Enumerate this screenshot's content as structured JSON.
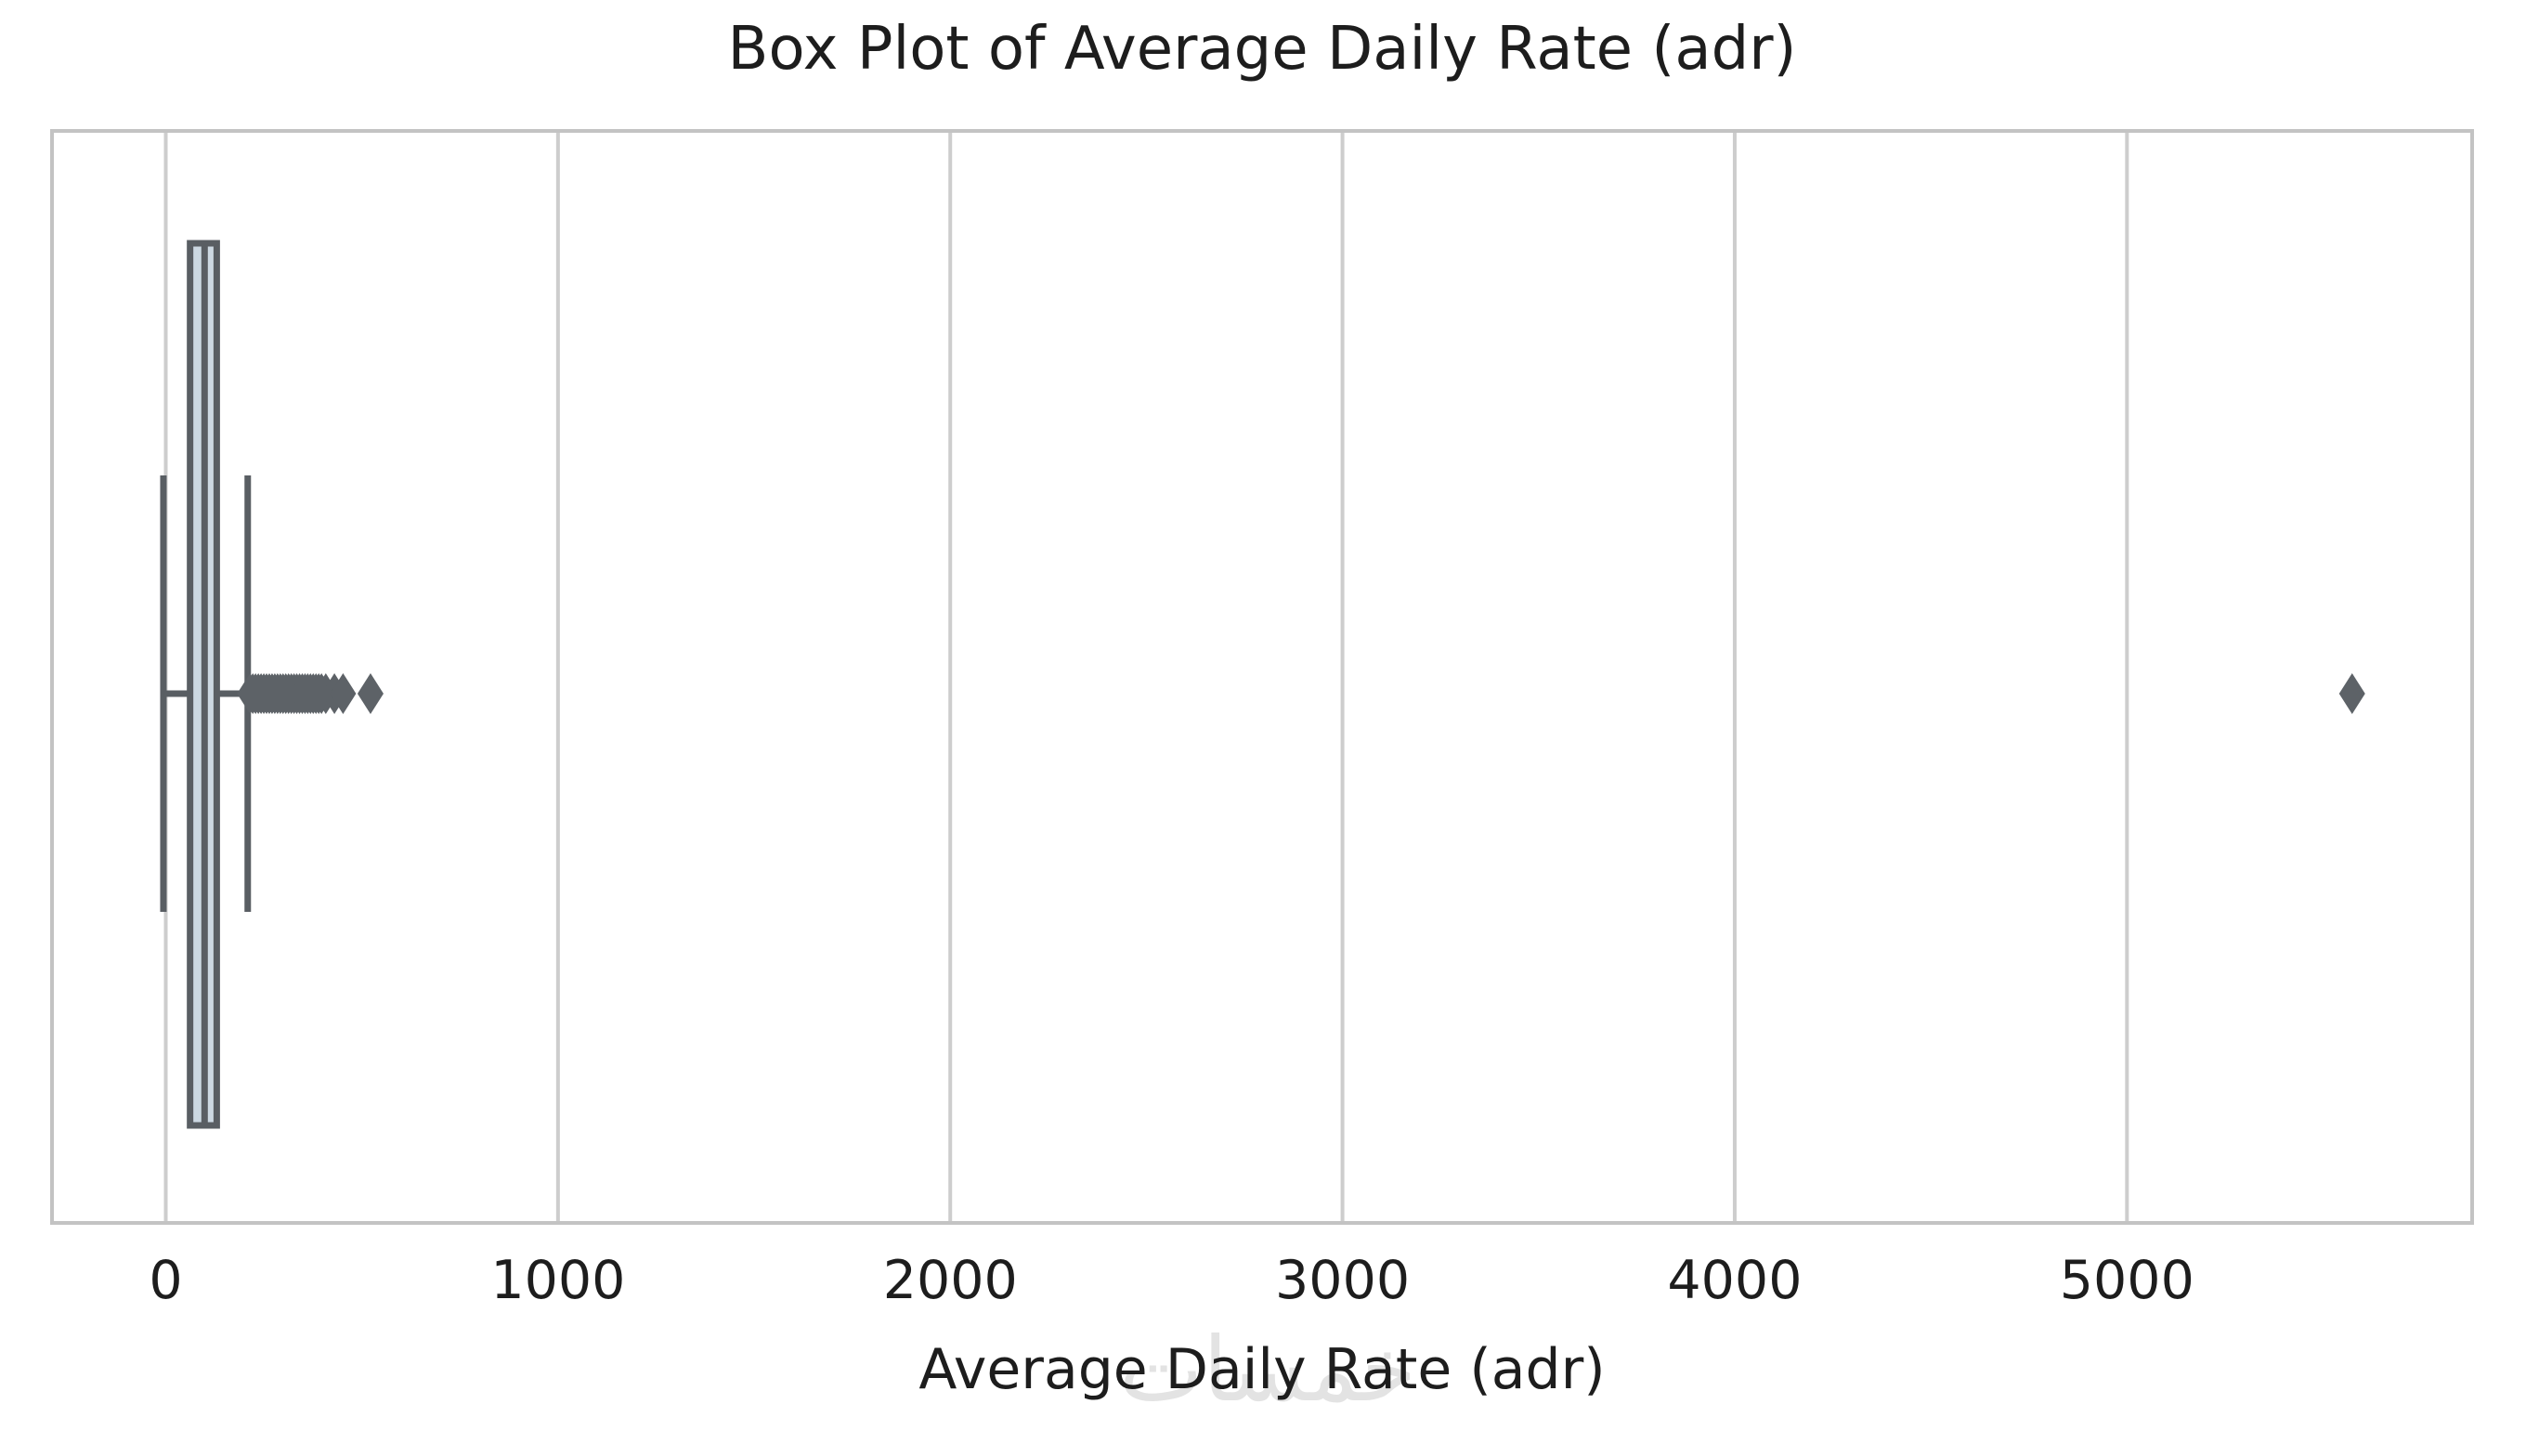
{
  "figure": {
    "title": "Box Plot of Average Daily Rate (adr)",
    "xlabel": "Average Daily Rate (adr)",
    "watermark": "خمسات"
  },
  "chart_data": {
    "type": "box",
    "orientation": "horizontal",
    "title": "Box Plot of Average Daily Rate (adr)",
    "xlabel": "Average Daily Rate (adr)",
    "ylabel": "",
    "grid": "vertical-gridlines-on",
    "legend": "none",
    "xlim": [
      -290,
      5880
    ],
    "xticks": [
      0,
      1000,
      2000,
      3000,
      4000,
      5000
    ],
    "series": [
      {
        "name": "adr",
        "whisker_low": -6,
        "q1": 62,
        "median": 99,
        "q3": 130,
        "whisker_high": 209,
        "outlier_cluster": {
          "min": 215,
          "max": 400,
          "step": 7
        },
        "outliers_discrete": [
          408,
          430,
          452,
          522,
          5574
        ]
      }
    ],
    "colors": {
      "box_fill": "#ccd8e2",
      "line": "#595e63",
      "flier": "#5d6267",
      "grid": "#cdcdcd",
      "spine": "#c3c3c3",
      "text": "#1d1d1d",
      "watermark": "#e3e3e3",
      "background": "#ffffff"
    }
  }
}
